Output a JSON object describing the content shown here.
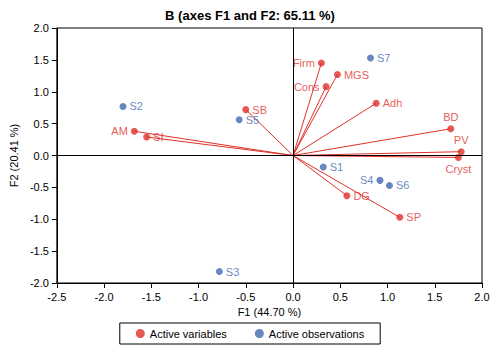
{
  "chart_data": {
    "type": "biplot",
    "title": "B (axes F1 and F2: 65.11 %)",
    "x_label": "F1 (44.70 %)",
    "y_label": "F2 (20.41 %)",
    "xlim": [
      -2.5,
      2.0
    ],
    "xticks": [
      -2.5,
      {
        "value": -2,
        "label": "-2.0"
      },
      -1.5,
      {
        "value": -1,
        "label": "-1.0"
      },
      -0.5,
      {
        "value": 0,
        "label": "0.0"
      },
      0.5,
      {
        "value": 1,
        "label": "1.0"
      },
      1.5,
      {
        "value": 2,
        "label": "2.0"
      }
    ],
    "ylim": [
      -2.0,
      2.0
    ],
    "yticks": [
      {
        "value": -2,
        "label": "-2.0"
      },
      -1.5,
      {
        "value": -1,
        "label": "-1.0"
      },
      -0.5,
      {
        "value": 0,
        "label": "0.0"
      },
      0.5,
      {
        "value": 1,
        "label": "1.0"
      },
      1.5,
      {
        "value": 2,
        "label": "2.0"
      }
    ],
    "grid": false,
    "legend": "bottom",
    "series": [
      {
        "name": "Active variables",
        "color": "#e0302a",
        "marker": "circle",
        "line_style": "solid",
        "labels": [
          "AM",
          "SI",
          "SB",
          "Firm",
          "MGS",
          "Cons",
          "Adh",
          "BD",
          "PV",
          "Cryst",
          "DG",
          "SP"
        ],
        "x": [
          -1.68,
          -1.55,
          -0.5,
          0.3,
          0.47,
          0.35,
          0.88,
          1.67,
          1.78,
          1.75,
          0.57,
          1.13
        ],
        "y": [
          0.38,
          0.29,
          0.72,
          1.45,
          1.27,
          1.08,
          0.82,
          0.42,
          0.06,
          -0.03,
          -0.63,
          -0.97
        ]
      },
      {
        "name": "Active observations",
        "color": "#4169b0",
        "marker": "circle",
        "labels": [
          "S1",
          "S2",
          "S3",
          "S4",
          "S5",
          "S6",
          "S7"
        ],
        "x": [
          0.32,
          -1.8,
          -0.78,
          0.92,
          -0.57,
          1.02,
          0.82
        ],
        "y": [
          -0.18,
          0.77,
          -1.82,
          -0.39,
          0.56,
          -0.47,
          1.53
        ]
      }
    ]
  }
}
